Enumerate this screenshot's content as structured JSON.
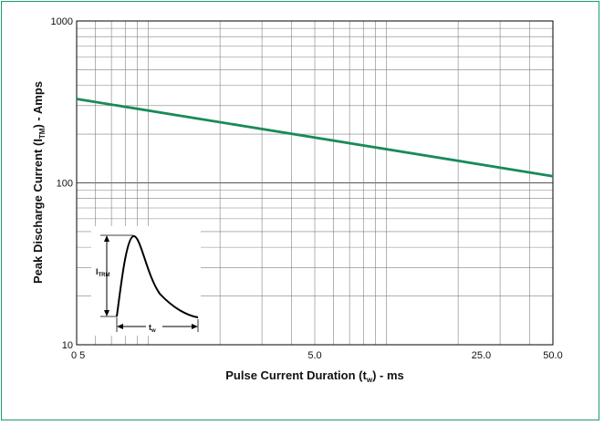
{
  "colors": {
    "frame": "#1a9a6e",
    "series": "#1a8a5a",
    "grid": "#808080",
    "text": "#111111"
  },
  "chart_data": {
    "type": "line",
    "xlabel": {
      "main": "Pulse Current Duration (t",
      "sub": "w",
      "tail": ") - ms"
    },
    "ylabel": {
      "main": "Peak Discharge Current (I",
      "sub": "TM",
      "tail": ") - Amps"
    },
    "y_scale": "log",
    "ylim": [
      10,
      1000
    ],
    "y_ticks": [
      {
        "value": 1000,
        "label": "1000"
      },
      {
        "value": 100,
        "label": "100"
      },
      {
        "value": 10,
        "label": "10"
      }
    ],
    "x_scale": "log",
    "xlim": [
      0.5,
      50.0
    ],
    "x_ticks": [
      {
        "value": 0.5,
        "label": "0 5"
      },
      {
        "value": 5.0,
        "label": "5.0"
      },
      {
        "value": 25.0,
        "label": "25.0"
      },
      {
        "value": 50.0,
        "label": "50.0"
      }
    ],
    "grid": true,
    "series": [
      {
        "x": [
          0.5,
          50.0
        ],
        "y": [
          330,
          110
        ]
      }
    ],
    "inset": {
      "amplitude_label": {
        "main": "I",
        "sub": "TRM"
      },
      "duration_label": {
        "main": "t",
        "sub": "w"
      }
    }
  }
}
